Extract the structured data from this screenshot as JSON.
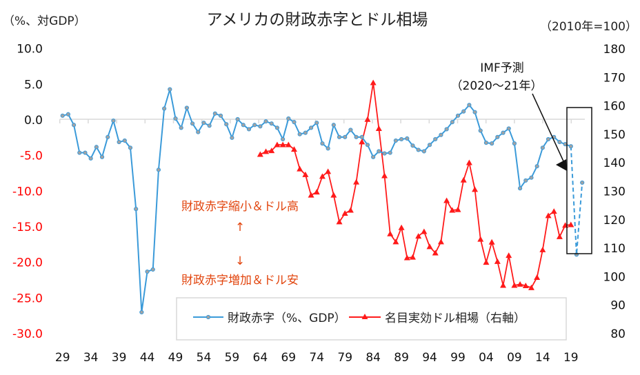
{
  "chart_data": {
    "type": "line",
    "title": "アメリカの財政赤字とドル相場",
    "ylabel_left": "（%、対GDP）",
    "ylabel_right": "（2010年=100）",
    "ylim_left": [
      -30,
      10
    ],
    "ylim_right": [
      80,
      180
    ],
    "yticks_left": [
      "10.0",
      "5.0",
      "0.0",
      "-5.0",
      "-10.0",
      "-15.0",
      "-20.0",
      "-25.0",
      "-30.0"
    ],
    "yticks_left_values": [
      10,
      5,
      0,
      -5,
      -10,
      -15,
      -20,
      -25,
      -30
    ],
    "yticks_right": [
      "180",
      "170",
      "160",
      "150",
      "140",
      "130",
      "120",
      "110",
      "100",
      "90",
      "80"
    ],
    "yticks_right_values": [
      180,
      170,
      160,
      150,
      140,
      130,
      120,
      110,
      100,
      90,
      80
    ],
    "xlim": [
      1929,
      2021
    ],
    "xticks": [
      "29",
      "34",
      "39",
      "44",
      "49",
      "54",
      "59",
      "64",
      "69",
      "74",
      "79",
      "84",
      "89",
      "94",
      "99",
      "04",
      "09",
      "14",
      "19"
    ],
    "xticks_years": [
      1929,
      1934,
      1939,
      1944,
      1949,
      1954,
      1959,
      1964,
      1969,
      1974,
      1979,
      1984,
      1989,
      1994,
      1999,
      2004,
      2009,
      2014,
      2019
    ],
    "grid": false,
    "legend_placement": "bottom-center",
    "colors": {
      "deficit": "#3a9ad9",
      "deficit_marker": "#a3a3a3",
      "dollar": "#ff1a1a",
      "negative_tick": "#ff0000",
      "annotation": "#e2460f"
    },
    "series": [
      {
        "name": "財政赤字（%、GDP）",
        "axis": "left",
        "marker": "circle",
        "start_year": 1929,
        "values": [
          0.5,
          0.7,
          -0.8,
          -4.7,
          -4.7,
          -5.5,
          -3.9,
          -5.3,
          -2.5,
          -0.2,
          -3.2,
          -3.0,
          -4.0,
          -12.6,
          -27.1,
          -21.4,
          -21.1,
          -7.1,
          1.5,
          4.2,
          0.1,
          -1.2,
          1.6,
          -0.6,
          -1.8,
          -0.5,
          -0.9,
          0.8,
          0.5,
          -0.7,
          -2.6,
          0.0,
          -0.8,
          -1.4,
          -0.8,
          -1.0,
          -0.3,
          -0.6,
          -1.2,
          -2.8,
          0.1,
          -0.4,
          -2.1,
          -1.9,
          -1.2,
          -0.5,
          -3.4,
          -4.1,
          -0.8,
          -2.5,
          -2.5,
          -1.5,
          -2.5,
          -2.5,
          -3.6,
          -5.3,
          -4.5,
          -4.8,
          -4.7,
          -3.0,
          -2.8,
          -2.7,
          -3.7,
          -4.3,
          -4.5,
          -3.6,
          -2.8,
          -2.2,
          -1.4,
          -0.4,
          0.5,
          1.1,
          2.0,
          1.0,
          -1.6,
          -3.3,
          -3.4,
          -2.5,
          -1.9,
          -1.3,
          -3.4,
          -9.7,
          -8.6,
          -8.2,
          -6.6,
          -4.0,
          -2.8,
          -2.5,
          -3.2,
          -3.5,
          -3.8
        ],
        "forecast": {
          "years": [
            2019,
            2020,
            2021
          ],
          "values": [
            -3.8,
            -19.0,
            -8.9
          ]
        }
      },
      {
        "name": "名目実効ドル相場（右軸）",
        "axis": "right",
        "marker": "triangle",
        "start_year": 1964,
        "values": [
          142.7,
          143.7,
          144.0,
          146.1,
          146.1,
          146.1,
          144.5,
          137.6,
          135.6,
          128.4,
          129.5,
          135.0,
          136.7,
          128.4,
          119.0,
          122.0,
          123.1,
          133.0,
          147.1,
          155.0,
          167.9,
          151.8,
          135.2,
          114.8,
          112.0,
          117.0,
          106.4,
          106.6,
          114.0,
          115.6,
          110.3,
          108.1,
          112.0,
          126.5,
          123.1,
          123.3,
          133.7,
          139.8,
          130.4,
          112.9,
          104.8,
          111.9,
          105.1,
          96.7,
          107.2,
          96.7,
          97.1,
          96.6,
          95.9,
          99.5,
          109.2,
          121.2,
          122.7,
          113.8,
          117.8,
          118.0
        ]
      }
    ],
    "annotations": {
      "imf_line1": "IMF予測",
      "imf_line2": "（2020〜21年）",
      "upper_text": "財政赤字縮小＆ドル高",
      "up_arrow": "↑",
      "down_arrow": "↓",
      "lower_text": "財政赤字増加＆ドル安"
    }
  }
}
